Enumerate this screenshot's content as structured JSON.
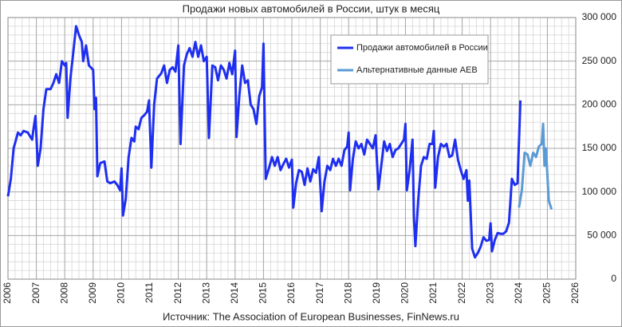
{
  "chart_data": {
    "type": "line",
    "title": "Продажи новых автомобилей в России, штук в месяц",
    "source": "Источник: The Association of European Businesses, FinNews.ru",
    "xlim": [
      2006,
      2026
    ],
    "xticks": [
      2006,
      2007,
      2008,
      2009,
      2010,
      2011,
      2012,
      2013,
      2014,
      2015,
      2016,
      2017,
      2018,
      2019,
      2020,
      2021,
      2022,
      2023,
      2024,
      2025,
      2026
    ],
    "ylim": [
      0,
      300000
    ],
    "yticks": [
      0,
      {
        "value": 50000,
        "label": "50 000"
      },
      {
        "value": 100000,
        "label": "100 000"
      },
      {
        "value": 150000,
        "label": "150 000"
      },
      {
        "value": 200000,
        "label": "200 000"
      },
      {
        "value": 250000,
        "label": "250 000"
      },
      {
        "value": 300000,
        "label": "300 000"
      }
    ],
    "grid": true,
    "legend": "upper center",
    "series": [
      {
        "name": "Продажи автомобилей в России",
        "color": "#1f2ff0",
        "x": [
          2006.0,
          2006.1,
          2006.2,
          2006.35,
          2006.45,
          2006.55,
          2006.7,
          2006.85,
          2006.9,
          2006.97,
          2007.05,
          2007.15,
          2007.25,
          2007.35,
          2007.5,
          2007.6,
          2007.7,
          2007.8,
          2007.9,
          2008.0,
          2008.05,
          2008.1,
          2008.2,
          2008.3,
          2008.4,
          2008.5,
          2008.6,
          2008.65,
          2008.75,
          2008.85,
          2009.0,
          2009.05,
          2009.1,
          2009.15,
          2009.25,
          2009.4,
          2009.5,
          2009.6,
          2009.75,
          2009.85,
          2009.95,
          2010.0,
          2010.05,
          2010.15,
          2010.25,
          2010.35,
          2010.45,
          2010.5,
          2010.6,
          2010.7,
          2010.8,
          2010.9,
          2010.97,
          2011.05,
          2011.15,
          2011.25,
          2011.4,
          2011.5,
          2011.6,
          2011.7,
          2011.8,
          2011.9,
          2012.0,
          2012.08,
          2012.2,
          2012.3,
          2012.4,
          2012.5,
          2012.6,
          2012.7,
          2012.8,
          2012.9,
          2013.0,
          2013.08,
          2013.2,
          2013.3,
          2013.4,
          2013.5,
          2013.6,
          2013.7,
          2013.8,
          2013.9,
          2014.0,
          2014.05,
          2014.15,
          2014.25,
          2014.35,
          2014.45,
          2014.55,
          2014.65,
          2014.75,
          2014.85,
          2014.95,
          2015.0,
          2015.08,
          2015.2,
          2015.3,
          2015.4,
          2015.5,
          2015.6,
          2015.7,
          2015.8,
          2015.9,
          2016.0,
          2016.05,
          2016.15,
          2016.25,
          2016.35,
          2016.45,
          2016.55,
          2016.65,
          2016.75,
          2016.85,
          2016.95,
          2017.05,
          2017.15,
          2017.25,
          2017.35,
          2017.45,
          2017.55,
          2017.65,
          2017.75,
          2017.85,
          2017.95,
          2018.0,
          2018.05,
          2018.15,
          2018.25,
          2018.35,
          2018.45,
          2018.55,
          2018.65,
          2018.75,
          2018.85,
          2018.95,
          2019.05,
          2019.15,
          2019.25,
          2019.35,
          2019.45,
          2019.55,
          2019.65,
          2019.75,
          2019.85,
          2019.95,
          2020.0,
          2020.05,
          2020.15,
          2020.25,
          2020.3,
          2020.35,
          2020.45,
          2020.55,
          2020.65,
          2020.75,
          2020.85,
          2020.95,
          2021.0,
          2021.05,
          2021.15,
          2021.25,
          2021.35,
          2021.45,
          2021.55,
          2021.65,
          2021.75,
          2021.85,
          2021.95,
          2022.05,
          2022.15,
          2022.2,
          2022.25,
          2022.35,
          2022.45,
          2022.55,
          2022.65,
          2022.75,
          2022.85,
          2022.95,
          2023.0,
          2023.05,
          2023.15,
          2023.25,
          2023.35,
          2023.45,
          2023.55,
          2023.65,
          2023.75,
          2023.85,
          2023.95,
          2024.05
        ],
        "values": [
          95000,
          115000,
          150000,
          168000,
          165000,
          170000,
          168000,
          160000,
          172000,
          187000,
          130000,
          150000,
          195000,
          218000,
          218000,
          225000,
          235000,
          225000,
          250000,
          245000,
          248000,
          185000,
          230000,
          260000,
          290000,
          280000,
          272000,
          250000,
          268000,
          245000,
          240000,
          195000,
          208000,
          118000,
          133000,
          135000,
          112000,
          110000,
          112000,
          108000,
          102000,
          127000,
          73000,
          92000,
          140000,
          162000,
          158000,
          175000,
          172000,
          185000,
          188000,
          192000,
          205000,
          128000,
          200000,
          230000,
          236000,
          245000,
          225000,
          240000,
          243000,
          238000,
          268000,
          155000,
          245000,
          258000,
          265000,
          255000,
          272000,
          255000,
          268000,
          250000,
          255000,
          162000,
          245000,
          243000,
          228000,
          245000,
          240000,
          230000,
          248000,
          235000,
          262000,
          163000,
          210000,
          245000,
          225000,
          228000,
          200000,
          195000,
          178000,
          210000,
          220000,
          270000,
          115000,
          128000,
          140000,
          130000,
          140000,
          125000,
          132000,
          138000,
          128000,
          137000,
          82000,
          110000,
          125000,
          123000,
          108000,
          127000,
          112000,
          126000,
          122000,
          140000,
          78000,
          112000,
          130000,
          125000,
          138000,
          130000,
          138000,
          130000,
          148000,
          152000,
          168000,
          102000,
          138000,
          158000,
          150000,
          155000,
          143000,
          160000,
          155000,
          150000,
          165000,
          103000,
          130000,
          158000,
          147000,
          155000,
          140000,
          148000,
          150000,
          155000,
          160000,
          178000,
          102000,
          125000,
          160000,
          70000,
          38000,
          90000,
          130000,
          140000,
          138000,
          155000,
          155000,
          170000,
          105000,
          140000,
          155000,
          152000,
          155000,
          140000,
          142000,
          160000,
          137000,
          125000,
          115000,
          125000,
          90000,
          113000,
          35000,
          25000,
          30000,
          37000,
          48000,
          44000,
          45000,
          64000,
          32000,
          45000,
          53000,
          52000,
          52000,
          55000,
          65000,
          115000,
          108000,
          110000,
          205000
        ]
      },
      {
        "name": "Альтернативные данные АЕВ",
        "color": "#5b9bd5",
        "x": [
          2024.0,
          2024.1,
          2024.2,
          2024.3,
          2024.4,
          2024.5,
          2024.6,
          2024.7,
          2024.8,
          2024.85,
          2024.9,
          2024.95,
          2025.05,
          2025.15
        ],
        "values": [
          82000,
          102000,
          145000,
          143000,
          130000,
          145000,
          140000,
          152000,
          155000,
          178000,
          130000,
          150000,
          90000,
          80000
        ]
      }
    ]
  }
}
